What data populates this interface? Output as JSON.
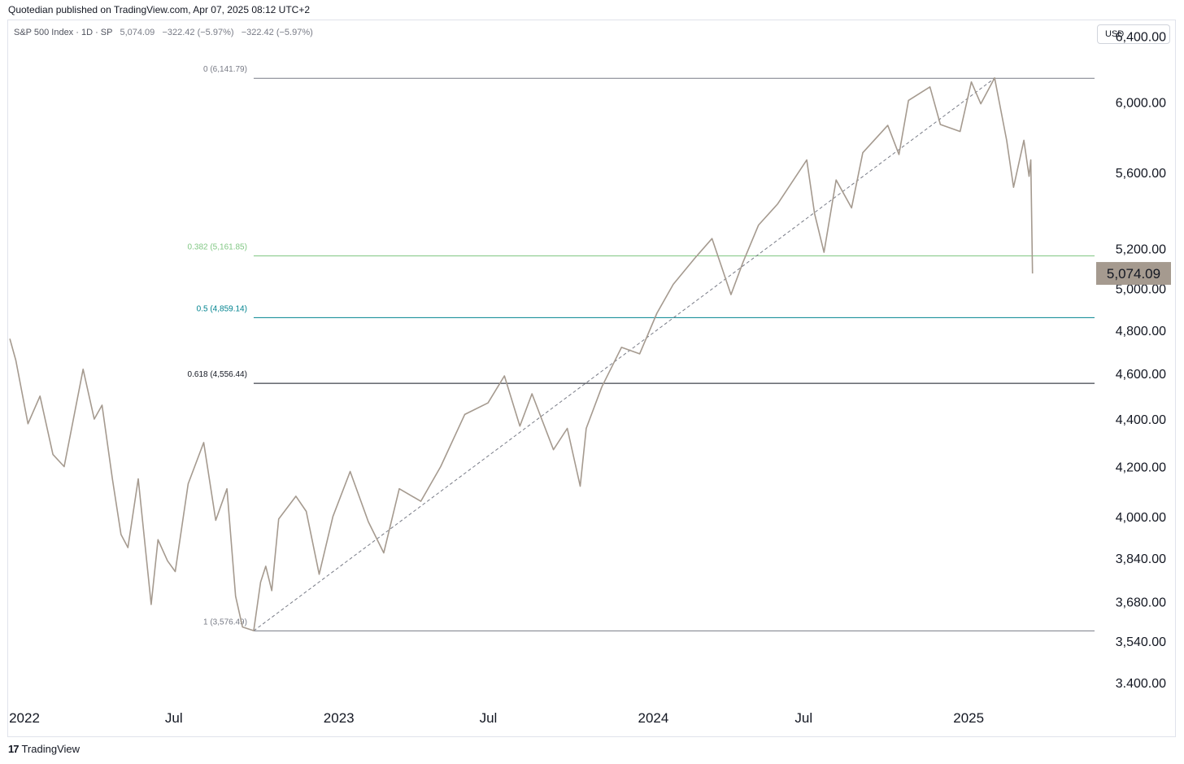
{
  "header": {
    "published_text": "Quotedian published on TradingView.com, Apr 07, 2025 08:12 UTC+2"
  },
  "legend": {
    "symbol": "S&P 500 Index · 1D · SP",
    "last": "5,074.09",
    "change": "−322.42 (−5.97%)",
    "change2": "−322.42 (−5.97%)"
  },
  "currency_button": "USD",
  "footer": {
    "brand": "TradingView"
  },
  "colors": {
    "price_line": "#a59a8f",
    "fib_0": "#787b86",
    "fib_382": "#81c784",
    "fib_05": "#00838f",
    "fib_618": "#131722",
    "fib_1": "#787b86",
    "trend": "#787b86",
    "last_badge_bg": "#a59a8f"
  },
  "chart_data": {
    "type": "line",
    "title": "S&P 500 Index · 1D · SP",
    "y_scale": "log",
    "ylim": [
      3330,
      6500
    ],
    "xlim": [
      "2022-01-01",
      "2025-06-15"
    ],
    "y_ticks": [
      "3.400.00",
      "3,540.00",
      "3,680.00",
      "3,840.00",
      "4,000.00",
      "4,200.00",
      "4,400.00",
      "4,600.00",
      "4,800.00",
      "5,000.00",
      "5,200.00",
      "5,600.00",
      "6,000.00",
      "6,400.00"
    ],
    "x_ticks": [
      {
        "label": "2022",
        "date": "2022-01-01"
      },
      {
        "label": "Jul",
        "date": "2022-07-01"
      },
      {
        "label": "2023",
        "date": "2023-01-01"
      },
      {
        "label": "Jul",
        "date": "2023-07-01"
      },
      {
        "label": "2024",
        "date": "2024-01-01"
      },
      {
        "label": "Jul",
        "date": "2024-07-01"
      },
      {
        "label": "2025",
        "date": "2025-01-01"
      }
    ],
    "last_value_label": "5,074.09",
    "fib_levels": [
      {
        "label": "0 (6,141.79)",
        "value": 6141.79,
        "color_key": "fib_0"
      },
      {
        "label": "0.382 (5,161.85)",
        "value": 5161.85,
        "color_key": "fib_382"
      },
      {
        "label": "0.5 (4,859.14)",
        "value": 4859.14,
        "color_key": "fib_05"
      },
      {
        "label": "0.618 (4,556.44)",
        "value": 4556.44,
        "color_key": "fib_618"
      },
      {
        "label": "1 (3,576.49)",
        "value": 3576.49,
        "color_key": "fib_1"
      }
    ],
    "fib_start_date": "2022-10-13",
    "trend_line": {
      "from": [
        "2022-10-13",
        3576.49
      ],
      "to": [
        "2025-02-19",
        6141.79
      ]
    },
    "series": [
      {
        "x": [
          "2022-01-03",
          "2022-01-10",
          "2022-01-24",
          "2022-02-07",
          "2022-02-22",
          "2022-03-07",
          "2022-03-29",
          "2022-04-11",
          "2022-04-20",
          "2022-05-02",
          "2022-05-12",
          "2022-05-20",
          "2022-06-01",
          "2022-06-16",
          "2022-06-24",
          "2022-07-05",
          "2022-07-14",
          "2022-07-29",
          "2022-08-16",
          "2022-08-30",
          "2022-09-12",
          "2022-09-22",
          "2022-09-30",
          "2022-10-13",
          "2022-10-21",
          "2022-10-27",
          "2022-11-03",
          "2022-11-11",
          "2022-12-01",
          "2022-12-13",
          "2022-12-28",
          "2023-01-13",
          "2023-02-02",
          "2023-02-23",
          "2023-03-13",
          "2023-03-31",
          "2023-04-25",
          "2023-05-18",
          "2023-06-15",
          "2023-07-12",
          "2023-07-31",
          "2023-08-18",
          "2023-09-01",
          "2023-09-26",
          "2023-10-12",
          "2023-10-27",
          "2023-11-03",
          "2023-11-21",
          "2023-12-14",
          "2024-01-04",
          "2024-01-24",
          "2024-02-12",
          "2024-03-08",
          "2024-03-28",
          "2024-04-19",
          "2024-05-03",
          "2024-05-21",
          "2024-06-12",
          "2024-07-16",
          "2024-07-25",
          "2024-08-05",
          "2024-08-19",
          "2024-09-06",
          "2024-09-19",
          "2024-10-18",
          "2024-10-31",
          "2024-11-11",
          "2024-12-06",
          "2024-12-18",
          "2025-01-10",
          "2025-01-23",
          "2025-02-03",
          "2025-02-19",
          "2025-03-05",
          "2025-03-13",
          "2025-03-25",
          "2025-03-31",
          "2025-04-02",
          "2025-04-04"
        ],
        "y": [
          4760,
          4660,
          4380,
          4500,
          4250,
          4200,
          4620,
          4400,
          4460,
          4150,
          3930,
          3880,
          4150,
          3670,
          3910,
          3830,
          3790,
          4130,
          4300,
          3985,
          4110,
          3700,
          3590,
          3577,
          3750,
          3810,
          3720,
          3990,
          4080,
          4020,
          3780,
          4000,
          4180,
          3980,
          3860,
          4110,
          4060,
          4200,
          4420,
          4470,
          4590,
          4370,
          4510,
          4270,
          4360,
          4120,
          4360,
          4540,
          4720,
          4690,
          4880,
          5020,
          5150,
          5250,
          4970,
          5130,
          5320,
          5430,
          5670,
          5380,
          5180,
          5560,
          5410,
          5710,
          5865,
          5700,
          6010,
          6090,
          5870,
          5830,
          6120,
          5990,
          6144,
          5780,
          5520,
          5780,
          5580,
          5670,
          5074
        ]
      }
    ]
  }
}
